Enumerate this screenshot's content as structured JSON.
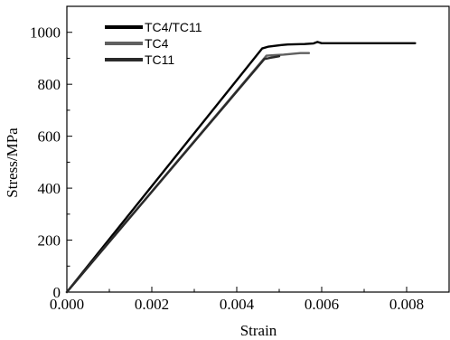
{
  "chart_data": {
    "type": "line",
    "title": "",
    "xlabel": "Strain",
    "ylabel": "Stress/MPa",
    "xlim": [
      0,
      0.009
    ],
    "ylim": [
      0,
      1100
    ],
    "xticks": [
      "0.000",
      "0.002",
      "0.004",
      "0.006",
      "0.008"
    ],
    "yticks": [
      "0",
      "200",
      "400",
      "600",
      "800",
      "1000"
    ],
    "grid": false,
    "legend_position": "top-left",
    "series": [
      {
        "name": "TC4/TC11",
        "color": "#000000",
        "x": [
          0,
          0.0046,
          0.00475,
          0.0049,
          0.00505,
          0.0052,
          0.0056,
          0.0058,
          0.0059,
          0.006,
          0.0065,
          0.0075,
          0.0082
        ],
        "y": [
          0,
          938,
          945,
          948,
          951,
          953,
          955,
          957,
          963,
          958,
          958,
          958,
          958
        ]
      },
      {
        "name": "TC4",
        "color": "#606060",
        "x": [
          0,
          0.0047,
          0.0049,
          0.0051,
          0.0053,
          0.0055,
          0.0057
        ],
        "y": [
          0,
          910,
          912,
          914,
          917,
          920,
          920
        ]
      },
      {
        "name": "TC11",
        "color": "#2a2a2a",
        "x": [
          0,
          0.00465,
          0.0048,
          0.0049,
          0.005
        ],
        "y": [
          0,
          897,
          902,
          905,
          908
        ]
      }
    ]
  }
}
